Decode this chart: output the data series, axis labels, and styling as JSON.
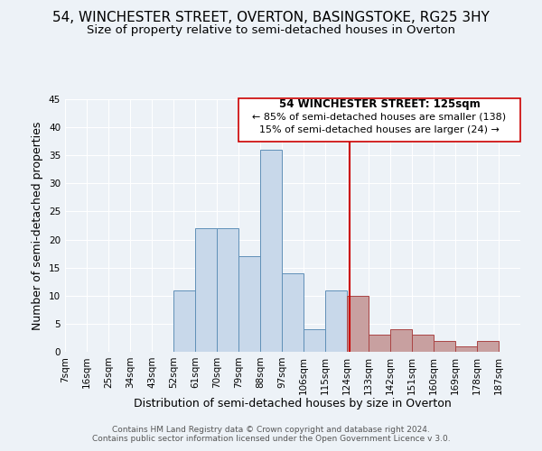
{
  "title": "54, WINCHESTER STREET, OVERTON, BASINGSTOKE, RG25 3HY",
  "subtitle": "Size of property relative to semi-detached houses in Overton",
  "xlabel": "Distribution of semi-detached houses by size in Overton",
  "ylabel": "Number of semi-detached properties",
  "footer_line1": "Contains HM Land Registry data © Crown copyright and database right 2024.",
  "footer_line2": "Contains public sector information licensed under the Open Government Licence v 3.0.",
  "bin_labels": [
    "7sqm",
    "16sqm",
    "25sqm",
    "34sqm",
    "43sqm",
    "52sqm",
    "61sqm",
    "70sqm",
    "79sqm",
    "88sqm",
    "97sqm",
    "106sqm",
    "115sqm",
    "124sqm",
    "133sqm",
    "142sqm",
    "151sqm",
    "160sqm",
    "169sqm",
    "178sqm",
    "187sqm"
  ],
  "bin_edges": [
    7,
    16,
    25,
    34,
    43,
    52,
    61,
    70,
    79,
    88,
    97,
    106,
    115,
    124,
    133,
    142,
    151,
    160,
    169,
    178,
    187,
    196
  ],
  "counts": [
    0,
    0,
    0,
    0,
    0,
    11,
    22,
    22,
    17,
    36,
    14,
    4,
    11,
    10,
    3,
    4,
    3,
    2,
    1,
    2,
    0
  ],
  "property_value": 125,
  "property_label": "54 WINCHESTER STREET: 125sqm",
  "pct_smaller": 85,
  "n_smaller": 138,
  "pct_larger": 15,
  "n_larger": 24,
  "bar_color_left": "#c8d8ea",
  "bar_color_right": "#c8a0a0",
  "bar_edge_color": "#6090b8",
  "bar_edge_color_right": "#aa4444",
  "vline_color": "#cc0000",
  "annotation_box_edge": "#cc0000",
  "ylim": [
    0,
    45
  ],
  "yticks": [
    0,
    5,
    10,
    15,
    20,
    25,
    30,
    35,
    40,
    45
  ],
  "title_fontsize": 11,
  "subtitle_fontsize": 9.5,
  "axis_label_fontsize": 9,
  "tick_fontsize": 7.5,
  "annotation_fontsize": 8.5,
  "footer_fontsize": 6.5,
  "background_color": "#edf2f7"
}
